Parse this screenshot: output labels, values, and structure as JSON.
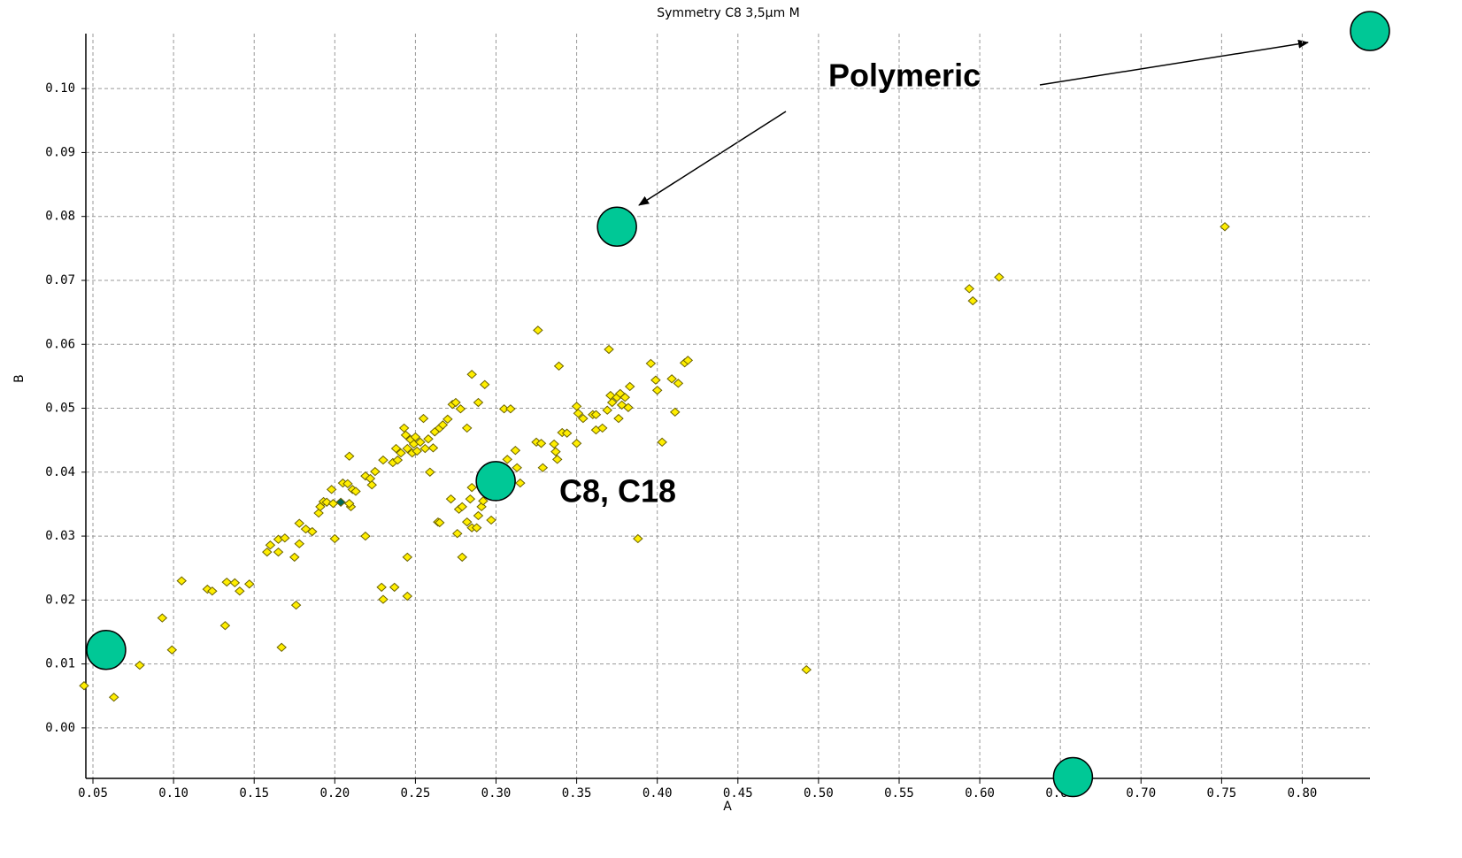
{
  "chart_data": {
    "type": "scatter",
    "title": "Symmetry C8 3,5µm       M",
    "x_label": "A",
    "y_label": "B",
    "xlim": [
      0.0456,
      0.842
    ],
    "ylim": [
      -0.0079,
      0.1086
    ],
    "grid": true,
    "xticks": [
      0.05,
      {
        "value": 0.1,
        "label": "0.10"
      },
      0.15,
      {
        "value": 0.2,
        "label": "0.20"
      },
      0.25,
      {
        "value": 0.3,
        "label": "0.30"
      },
      0.35,
      {
        "value": 0.4,
        "label": "0.40"
      },
      0.45,
      {
        "value": 0.5,
        "label": "0.50"
      },
      0.55,
      {
        "value": 0.6,
        "label": "0.60"
      },
      0.65,
      {
        "value": 0.7,
        "label": "0.70"
      },
      0.75,
      {
        "value": 0.8,
        "label": "0.80"
      }
    ],
    "yticks": [
      {
        "value": 0,
        "label": "0.00"
      },
      0.01,
      0.02,
      0.03,
      0.04,
      0.05,
      0.06,
      0.07,
      0.08,
      0.09,
      {
        "value": 0.1,
        "label": "0.10"
      }
    ],
    "annotations": [
      {
        "text": "Polymeric"
      },
      {
        "text": "C8, C18"
      }
    ],
    "series": [
      {
        "color": "#ffee00",
        "marker": "diamond",
        "x": [
          0.0445,
          0.063,
          0.079,
          0.093,
          0.099,
          0.105,
          0.121,
          0.124,
          0.132,
          0.133,
          0.138,
          0.141,
          0.147,
          0.158,
          0.16,
          0.165,
          0.165,
          0.169,
          0.167,
          0.176,
          0.175,
          0.178,
          0.178,
          0.182,
          0.186,
          0.19,
          0.191,
          0.193,
          0.195,
          0.198,
          0.199,
          0.2,
          0.205,
          0.208,
          0.209,
          0.21,
          0.209,
          0.211,
          0.213,
          0.219,
          0.219,
          0.222,
          0.223,
          0.225,
          0.229,
          0.23,
          0.23,
          0.236,
          0.237,
          0.238,
          0.239,
          0.241,
          0.243,
          0.244,
          0.245,
          0.245,
          0.245,
          0.247,
          0.248,
          0.249,
          0.25,
          0.251,
          0.253,
          0.255,
          0.256,
          0.258,
          0.259,
          0.261,
          0.262,
          0.264,
          0.265,
          0.265,
          0.267,
          0.27,
          0.272,
          0.273,
          0.275,
          0.276,
          0.277,
          0.278,
          0.279,
          0.279,
          0.282,
          0.282,
          0.284,
          0.285,
          0.285,
          0.285,
          0.288,
          0.289,
          0.289,
          0.291,
          0.292,
          0.293,
          0.297,
          0.305,
          0.309,
          0.307,
          0.312,
          0.313,
          0.315,
          0.326,
          0.325,
          0.328,
          0.329,
          0.336,
          0.337,
          0.338,
          0.339,
          0.341,
          0.344,
          0.35,
          0.351,
          0.35,
          0.354,
          0.36,
          0.362,
          0.362,
          0.366,
          0.369,
          0.37,
          0.371,
          0.372,
          0.375,
          0.376,
          0.377,
          0.378,
          0.38,
          0.382,
          0.383,
          0.388,
          0.396,
          0.399,
          0.4,
          0.403,
          0.409,
          0.411,
          0.413,
          0.417,
          0.419,
          0.4925,
          0.5935,
          0.5957,
          0.612,
          0.752
        ],
        "y": [
          0.0066,
          0.0048,
          0.0098,
          0.0172,
          0.0122,
          0.023,
          0.0217,
          0.0214,
          0.016,
          0.0228,
          0.0227,
          0.0214,
          0.0225,
          0.0275,
          0.0286,
          0.0275,
          0.0295,
          0.0297,
          0.0126,
          0.0192,
          0.0267,
          0.0288,
          0.032,
          0.0311,
          0.0307,
          0.0336,
          0.0346,
          0.0354,
          0.0353,
          0.0373,
          0.0351,
          0.0296,
          0.0383,
          0.0382,
          0.0425,
          0.0346,
          0.0351,
          0.0373,
          0.037,
          0.03,
          0.0394,
          0.039,
          0.038,
          0.0401,
          0.022,
          0.0201,
          0.0419,
          0.0415,
          0.022,
          0.0437,
          0.0419,
          0.043,
          0.0469,
          0.0458,
          0.0206,
          0.0437,
          0.0267,
          0.0451,
          0.043,
          0.0444,
          0.0455,
          0.0433,
          0.0447,
          0.0484,
          0.0437,
          0.0452,
          0.04,
          0.0438,
          0.0463,
          0.0322,
          0.0321,
          0.0469,
          0.0474,
          0.0483,
          0.0358,
          0.0506,
          0.0509,
          0.0304,
          0.0342,
          0.0499,
          0.0267,
          0.0346,
          0.0469,
          0.0322,
          0.0358,
          0.0376,
          0.0553,
          0.0313,
          0.0313,
          0.0509,
          0.0332,
          0.0346,
          0.0355,
          0.0537,
          0.0325,
          0.0499,
          0.0499,
          0.042,
          0.0434,
          0.0407,
          0.0383,
          0.0622,
          0.0447,
          0.0445,
          0.0407,
          0.0444,
          0.0432,
          0.042,
          0.0566,
          0.0462,
          0.0461,
          0.0503,
          0.0492,
          0.0445,
          0.0484,
          0.049,
          0.049,
          0.0466,
          0.0469,
          0.0497,
          0.0592,
          0.052,
          0.0509,
          0.0517,
          0.0484,
          0.0523,
          0.0505,
          0.0517,
          0.0501,
          0.0534,
          0.0296,
          0.057,
          0.0544,
          0.0528,
          0.0447,
          0.0546,
          0.0494,
          0.0539,
          0.0571,
          0.0575,
          0.0091,
          0.0687,
          0.0668,
          0.0705,
          0.0784
        ]
      },
      {
        "color": "#006a5a",
        "marker": "diamond",
        "x": [
          0.2037
        ],
        "y": [
          0.0353
        ]
      },
      {
        "color": "#00c896",
        "marker": "circle",
        "x": [
          0.375,
          0.2998,
          0.0582,
          0.6578,
          0.842
        ],
        "y": [
          0.0784,
          0.0386,
          0.0122,
          -0.0077,
          0.109
        ]
      }
    ]
  }
}
